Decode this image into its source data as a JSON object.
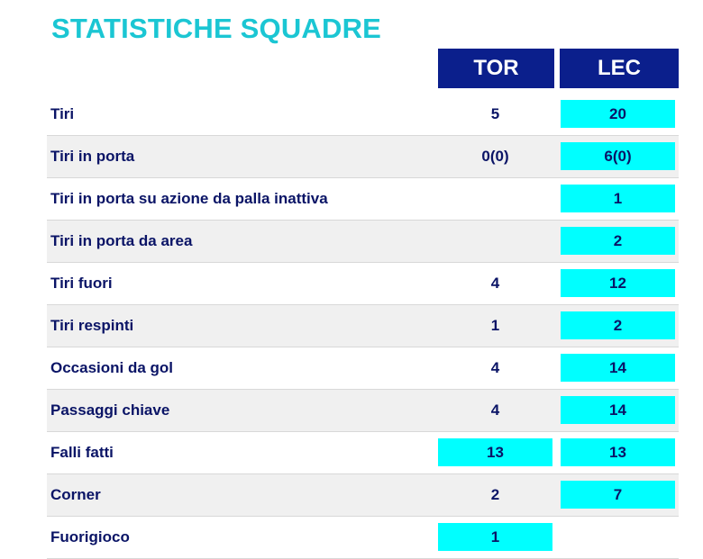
{
  "title": "STATISTICHE SQUADRE",
  "colors": {
    "title": "#1bc6d3",
    "header_bg": "#0b1f8c",
    "highlight": "#00ffff",
    "text": "#0a1466",
    "row_shade": "#f0f0f0"
  },
  "teams": {
    "home": "TOR",
    "away": "LEC"
  },
  "rows": [
    {
      "label": "Tiri",
      "home": "5",
      "away": "20",
      "home_highlight": false,
      "away_highlight": true
    },
    {
      "label": "Tiri in porta",
      "home": "0(0)",
      "away": "6(0)",
      "home_highlight": false,
      "away_highlight": true
    },
    {
      "label": "Tiri in porta su azione da palla inattiva",
      "home": "",
      "away": "1",
      "home_highlight": false,
      "away_highlight": true
    },
    {
      "label": "Tiri in porta da area",
      "home": "",
      "away": "2",
      "home_highlight": false,
      "away_highlight": true
    },
    {
      "label": "Tiri fuori",
      "home": "4",
      "away": "12",
      "home_highlight": false,
      "away_highlight": true
    },
    {
      "label": "Tiri respinti",
      "home": "1",
      "away": "2",
      "home_highlight": false,
      "away_highlight": true
    },
    {
      "label": "Occasioni da gol",
      "home": "4",
      "away": "14",
      "home_highlight": false,
      "away_highlight": true
    },
    {
      "label": "Passaggi chiave",
      "home": "4",
      "away": "14",
      "home_highlight": false,
      "away_highlight": true
    },
    {
      "label": "Falli fatti",
      "home": "13",
      "away": "13",
      "home_highlight": true,
      "away_highlight": true
    },
    {
      "label": "Corner",
      "home": "2",
      "away": "7",
      "home_highlight": false,
      "away_highlight": true
    },
    {
      "label": "Fuorigioco",
      "home": "1",
      "away": "",
      "home_highlight": true,
      "away_highlight": false
    }
  ]
}
